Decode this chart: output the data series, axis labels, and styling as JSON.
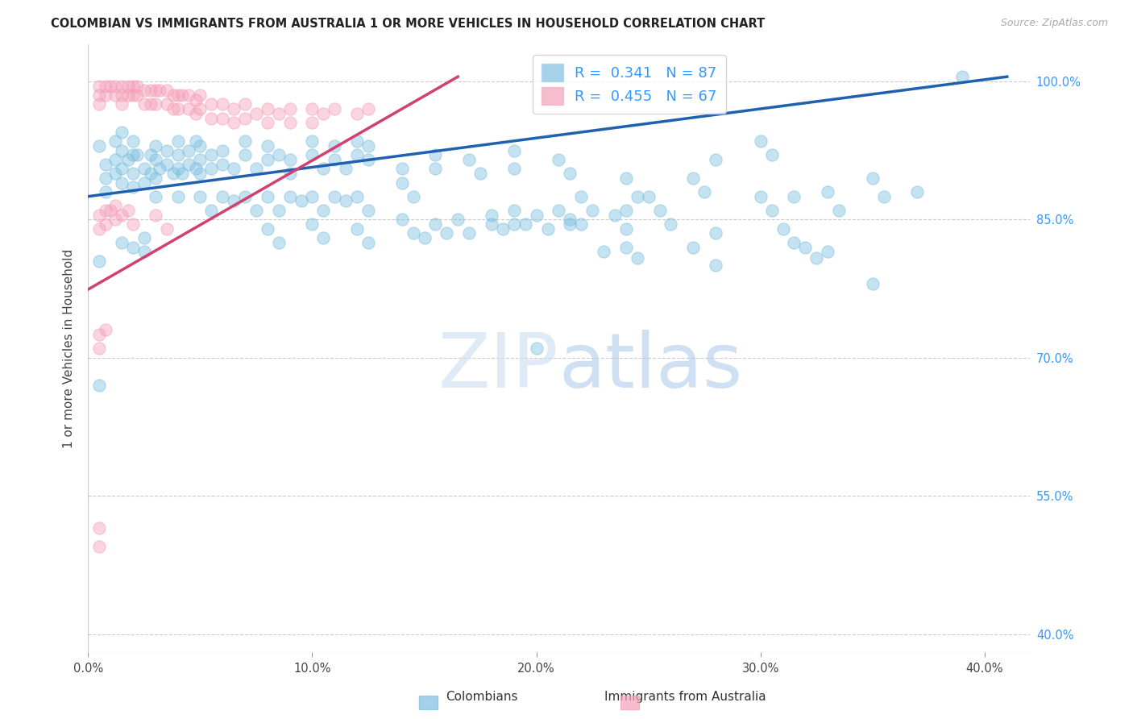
{
  "title": "COLOMBIAN VS IMMIGRANTS FROM AUSTRALIA 1 OR MORE VEHICLES IN HOUSEHOLD CORRELATION CHART",
  "source": "Source: ZipAtlas.com",
  "ylabel": "1 or more Vehicles in Household",
  "xlim": [
    0.0,
    0.42
  ],
  "ylim": [
    0.38,
    1.04
  ],
  "x_tick_vals": [
    0.0,
    0.1,
    0.2,
    0.3,
    0.4
  ],
  "x_tick_labels": [
    "0.0%",
    "10.0%",
    "20.0%",
    "30.0%",
    "40.0%"
  ],
  "y_tick_vals": [
    0.4,
    0.55,
    0.7,
    0.85,
    1.0
  ],
  "y_tick_labels": [
    "40.0%",
    "55.0%",
    "70.0%",
    "85.0%",
    "100.0%"
  ],
  "legend_blue_r": "0.341",
  "legend_blue_n": "87",
  "legend_pink_r": "0.455",
  "legend_pink_n": "67",
  "blue_color": "#7fbfdf",
  "pink_color": "#f4a0b8",
  "blue_line_color": "#2060b0",
  "pink_line_color": "#d04070",
  "watermark_zip": "ZIP",
  "watermark_atlas": "atlas",
  "blue_trendline": [
    [
      0.0,
      0.875
    ],
    [
      0.41,
      1.005
    ]
  ],
  "pink_trendline": [
    [
      -0.01,
      0.76
    ],
    [
      0.165,
      1.005
    ]
  ],
  "blue_scatter": [
    [
      0.005,
      0.93
    ],
    [
      0.008,
      0.91
    ],
    [
      0.008,
      0.895
    ],
    [
      0.008,
      0.88
    ],
    [
      0.012,
      0.935
    ],
    [
      0.012,
      0.915
    ],
    [
      0.012,
      0.9
    ],
    [
      0.015,
      0.945
    ],
    [
      0.015,
      0.925
    ],
    [
      0.015,
      0.905
    ],
    [
      0.015,
      0.89
    ],
    [
      0.018,
      0.915
    ],
    [
      0.02,
      0.935
    ],
    [
      0.02,
      0.92
    ],
    [
      0.02,
      0.9
    ],
    [
      0.02,
      0.885
    ],
    [
      0.022,
      0.92
    ],
    [
      0.025,
      0.905
    ],
    [
      0.025,
      0.89
    ],
    [
      0.028,
      0.92
    ],
    [
      0.028,
      0.9
    ],
    [
      0.03,
      0.93
    ],
    [
      0.03,
      0.915
    ],
    [
      0.03,
      0.895
    ],
    [
      0.032,
      0.905
    ],
    [
      0.035,
      0.925
    ],
    [
      0.035,
      0.91
    ],
    [
      0.038,
      0.9
    ],
    [
      0.04,
      0.935
    ],
    [
      0.04,
      0.92
    ],
    [
      0.04,
      0.905
    ],
    [
      0.042,
      0.9
    ],
    [
      0.045,
      0.925
    ],
    [
      0.045,
      0.91
    ],
    [
      0.048,
      0.935
    ],
    [
      0.048,
      0.905
    ],
    [
      0.05,
      0.93
    ],
    [
      0.05,
      0.915
    ],
    [
      0.05,
      0.9
    ],
    [
      0.055,
      0.92
    ],
    [
      0.055,
      0.905
    ],
    [
      0.06,
      0.925
    ],
    [
      0.06,
      0.91
    ],
    [
      0.065,
      0.905
    ],
    [
      0.07,
      0.935
    ],
    [
      0.07,
      0.92
    ],
    [
      0.075,
      0.905
    ],
    [
      0.08,
      0.93
    ],
    [
      0.08,
      0.915
    ],
    [
      0.085,
      0.92
    ],
    [
      0.09,
      0.915
    ],
    [
      0.09,
      0.9
    ],
    [
      0.1,
      0.935
    ],
    [
      0.1,
      0.92
    ],
    [
      0.105,
      0.905
    ],
    [
      0.11,
      0.93
    ],
    [
      0.11,
      0.915
    ],
    [
      0.115,
      0.905
    ],
    [
      0.12,
      0.935
    ],
    [
      0.12,
      0.92
    ],
    [
      0.125,
      0.93
    ],
    [
      0.125,
      0.915
    ],
    [
      0.03,
      0.875
    ],
    [
      0.04,
      0.875
    ],
    [
      0.05,
      0.875
    ],
    [
      0.055,
      0.86
    ],
    [
      0.06,
      0.875
    ],
    [
      0.065,
      0.87
    ],
    [
      0.07,
      0.875
    ],
    [
      0.075,
      0.86
    ],
    [
      0.08,
      0.875
    ],
    [
      0.085,
      0.86
    ],
    [
      0.09,
      0.875
    ],
    [
      0.095,
      0.87
    ],
    [
      0.1,
      0.875
    ],
    [
      0.105,
      0.86
    ],
    [
      0.11,
      0.875
    ],
    [
      0.115,
      0.87
    ],
    [
      0.12,
      0.875
    ],
    [
      0.125,
      0.86
    ],
    [
      0.14,
      0.905
    ],
    [
      0.14,
      0.89
    ],
    [
      0.145,
      0.875
    ],
    [
      0.155,
      0.92
    ],
    [
      0.155,
      0.905
    ],
    [
      0.17,
      0.915
    ],
    [
      0.175,
      0.9
    ],
    [
      0.19,
      0.925
    ],
    [
      0.19,
      0.905
    ],
    [
      0.21,
      0.915
    ],
    [
      0.215,
      0.9
    ],
    [
      0.22,
      0.875
    ],
    [
      0.225,
      0.86
    ],
    [
      0.24,
      0.895
    ],
    [
      0.245,
      0.875
    ],
    [
      0.25,
      0.875
    ],
    [
      0.255,
      0.86
    ],
    [
      0.27,
      0.895
    ],
    [
      0.275,
      0.88
    ],
    [
      0.28,
      0.915
    ],
    [
      0.3,
      0.935
    ],
    [
      0.305,
      0.92
    ],
    [
      0.315,
      0.875
    ],
    [
      0.33,
      0.88
    ],
    [
      0.335,
      0.86
    ],
    [
      0.35,
      0.895
    ],
    [
      0.355,
      0.875
    ],
    [
      0.37,
      0.88
    ],
    [
      0.39,
      1.005
    ],
    [
      0.18,
      0.845
    ],
    [
      0.19,
      0.845
    ],
    [
      0.21,
      0.86
    ],
    [
      0.215,
      0.845
    ],
    [
      0.24,
      0.86
    ],
    [
      0.26,
      0.845
    ],
    [
      0.3,
      0.875
    ],
    [
      0.305,
      0.86
    ],
    [
      0.015,
      0.825
    ],
    [
      0.02,
      0.82
    ],
    [
      0.025,
      0.83
    ],
    [
      0.025,
      0.815
    ],
    [
      0.08,
      0.84
    ],
    [
      0.085,
      0.825
    ],
    [
      0.1,
      0.845
    ],
    [
      0.105,
      0.83
    ],
    [
      0.12,
      0.84
    ],
    [
      0.125,
      0.825
    ],
    [
      0.14,
      0.85
    ],
    [
      0.145,
      0.835
    ],
    [
      0.155,
      0.845
    ],
    [
      0.16,
      0.835
    ],
    [
      0.165,
      0.85
    ],
    [
      0.17,
      0.835
    ],
    [
      0.18,
      0.855
    ],
    [
      0.185,
      0.84
    ],
    [
      0.19,
      0.86
    ],
    [
      0.195,
      0.845
    ],
    [
      0.2,
      0.855
    ],
    [
      0.205,
      0.84
    ],
    [
      0.215,
      0.85
    ],
    [
      0.22,
      0.845
    ],
    [
      0.235,
      0.855
    ],
    [
      0.24,
      0.84
    ],
    [
      0.24,
      0.82
    ],
    [
      0.245,
      0.808
    ],
    [
      0.23,
      0.815
    ],
    [
      0.27,
      0.82
    ],
    [
      0.28,
      0.835
    ],
    [
      0.31,
      0.84
    ],
    [
      0.315,
      0.825
    ],
    [
      0.32,
      0.82
    ],
    [
      0.325,
      0.808
    ],
    [
      0.33,
      0.815
    ],
    [
      0.35,
      0.78
    ],
    [
      0.005,
      0.805
    ],
    [
      0.15,
      0.83
    ],
    [
      0.2,
      0.71
    ],
    [
      0.005,
      0.67
    ],
    [
      0.28,
      0.8
    ]
  ],
  "pink_scatter": [
    [
      0.005,
      0.995
    ],
    [
      0.005,
      0.985
    ],
    [
      0.005,
      0.975
    ],
    [
      0.008,
      0.995
    ],
    [
      0.008,
      0.985
    ],
    [
      0.01,
      0.995
    ],
    [
      0.012,
      0.995
    ],
    [
      0.012,
      0.985
    ],
    [
      0.015,
      0.995
    ],
    [
      0.015,
      0.985
    ],
    [
      0.015,
      0.975
    ],
    [
      0.018,
      0.995
    ],
    [
      0.018,
      0.985
    ],
    [
      0.02,
      0.995
    ],
    [
      0.02,
      0.985
    ],
    [
      0.022,
      0.995
    ],
    [
      0.022,
      0.985
    ],
    [
      0.025,
      0.99
    ],
    [
      0.025,
      0.975
    ],
    [
      0.028,
      0.99
    ],
    [
      0.028,
      0.975
    ],
    [
      0.03,
      0.99
    ],
    [
      0.03,
      0.975
    ],
    [
      0.032,
      0.99
    ],
    [
      0.035,
      0.99
    ],
    [
      0.035,
      0.975
    ],
    [
      0.038,
      0.985
    ],
    [
      0.038,
      0.97
    ],
    [
      0.04,
      0.985
    ],
    [
      0.04,
      0.97
    ],
    [
      0.042,
      0.985
    ],
    [
      0.045,
      0.985
    ],
    [
      0.045,
      0.97
    ],
    [
      0.048,
      0.98
    ],
    [
      0.048,
      0.965
    ],
    [
      0.05,
      0.985
    ],
    [
      0.05,
      0.97
    ],
    [
      0.055,
      0.975
    ],
    [
      0.055,
      0.96
    ],
    [
      0.06,
      0.975
    ],
    [
      0.06,
      0.96
    ],
    [
      0.065,
      0.97
    ],
    [
      0.065,
      0.955
    ],
    [
      0.07,
      0.975
    ],
    [
      0.07,
      0.96
    ],
    [
      0.075,
      0.965
    ],
    [
      0.08,
      0.97
    ],
    [
      0.08,
      0.955
    ],
    [
      0.085,
      0.965
    ],
    [
      0.09,
      0.97
    ],
    [
      0.09,
      0.955
    ],
    [
      0.1,
      0.97
    ],
    [
      0.1,
      0.955
    ],
    [
      0.105,
      0.965
    ],
    [
      0.11,
      0.97
    ],
    [
      0.12,
      0.965
    ],
    [
      0.125,
      0.97
    ],
    [
      0.005,
      0.855
    ],
    [
      0.005,
      0.84
    ],
    [
      0.008,
      0.86
    ],
    [
      0.008,
      0.845
    ],
    [
      0.01,
      0.86
    ],
    [
      0.012,
      0.865
    ],
    [
      0.012,
      0.85
    ],
    [
      0.015,
      0.855
    ],
    [
      0.018,
      0.86
    ],
    [
      0.02,
      0.845
    ],
    [
      0.03,
      0.855
    ],
    [
      0.035,
      0.84
    ],
    [
      0.005,
      0.725
    ],
    [
      0.005,
      0.71
    ],
    [
      0.008,
      0.73
    ],
    [
      0.005,
      0.515
    ],
    [
      0.005,
      0.495
    ]
  ]
}
